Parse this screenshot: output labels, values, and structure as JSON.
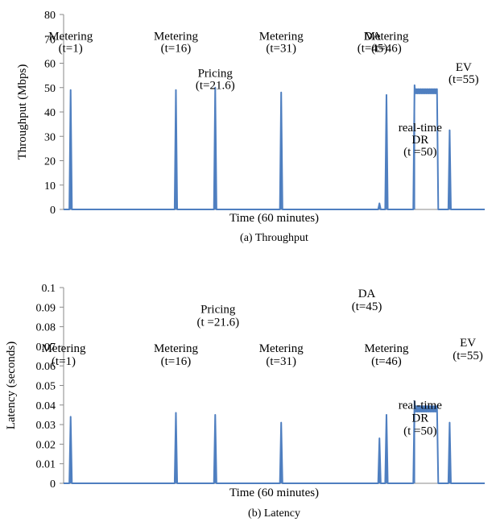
{
  "chart_data": [
    {
      "type": "line",
      "caption": "(a) Throughput",
      "xlabel": "Time (60 minutes)",
      "ylabel": "Throughput (Mbps)",
      "xlim": [
        0,
        60
      ],
      "ylim": [
        0,
        80
      ],
      "yticks": [
        "0",
        "10",
        "20",
        "30",
        "40",
        "50",
        "60",
        "70",
        "80"
      ],
      "grid": false,
      "bursts": [
        {
          "x": 1.0,
          "value": 49
        },
        {
          "x": 16.0,
          "value": 49
        },
        {
          "x": 21.6,
          "value": 50
        },
        {
          "x": 31.0,
          "value": 48
        },
        {
          "x": 45.0,
          "value": 2.5
        },
        {
          "x": 46.0,
          "value": 47
        },
        {
          "x": 50.0,
          "value": 51,
          "sustained_end": 53.2,
          "level": 48.5
        },
        {
          "x": 55.0,
          "value": 32.5
        }
      ],
      "annotations": [
        {
          "lines": [
            "Metering",
            "(t=1)"
          ],
          "x": 1.0,
          "y": 0.92
        },
        {
          "lines": [
            "Metering",
            "(t=16)"
          ],
          "x": 16.0,
          "y": 0.92
        },
        {
          "lines": [
            "Pricing",
            "(t=21.6)"
          ],
          "x": 21.6,
          "y": 0.73
        },
        {
          "lines": [
            "Metering",
            "(t=31)"
          ],
          "x": 31.0,
          "y": 0.92
        },
        {
          "lines": [
            "Metering",
            "(t=46)"
          ],
          "x": 46.0,
          "y": 0.92
        },
        {
          "lines": [
            "real-time",
            "DR",
            "(t =50)"
          ],
          "x": 50.8,
          "y": 0.45
        },
        {
          "lines": [
            "EV",
            "(t=55)"
          ],
          "x": 57.0,
          "y": 0.76
        },
        {
          "lines": [
            "DA",
            "(t=45)"
          ],
          "x": 44.0,
          "y": 0.92
        }
      ]
    },
    {
      "type": "line",
      "caption": "(b) Latency",
      "xlabel": "Time (60 minutes)",
      "ylabel": "Latency (seconds)",
      "xlim": [
        0,
        60
      ],
      "ylim": [
        0,
        0.1
      ],
      "yticks": [
        "0",
        "0.01",
        "0.02",
        "0.03",
        "0.04",
        "0.05",
        "0.06",
        "0.07",
        "0.08",
        "0.09",
        "0.1"
      ],
      "grid": false,
      "bursts": [
        {
          "x": 1.0,
          "value": 0.034
        },
        {
          "x": 16.0,
          "value": 0.036
        },
        {
          "x": 21.6,
          "value": 0.035
        },
        {
          "x": 31.0,
          "value": 0.031
        },
        {
          "x": 45.0,
          "value": 0.023
        },
        {
          "x": 46.0,
          "value": 0.035
        },
        {
          "x": 50.0,
          "value": 0.042,
          "sustained_end": 53.2,
          "level": 0.038
        },
        {
          "x": 55.0,
          "value": 0.031
        }
      ],
      "annotations": [
        {
          "lines": [
            "Metering",
            "(t=1)"
          ],
          "x": 0.0,
          "y": 0.72
        },
        {
          "lines": [
            "Metering",
            "(t=16)"
          ],
          "x": 16.0,
          "y": 0.72
        },
        {
          "lines": [
            "Pricing",
            "(t =21.6)"
          ],
          "x": 22.0,
          "y": 0.92
        },
        {
          "lines": [
            "Metering",
            "(t=31)"
          ],
          "x": 31.0,
          "y": 0.72
        },
        {
          "lines": [
            "Metering",
            "(t=46)"
          ],
          "x": 46.0,
          "y": 0.72
        },
        {
          "lines": [
            "real-time",
            "DR",
            "(t =50)"
          ],
          "x": 50.8,
          "y": 0.43
        },
        {
          "lines": [
            "EV",
            "(t=55)"
          ],
          "x": 57.6,
          "y": 0.75
        },
        {
          "lines": [
            "DA",
            "(t=45)"
          ],
          "x": 43.2,
          "y": 1.0
        }
      ]
    }
  ],
  "colors": {
    "series": "#4f7fc0",
    "axis": "#8a8a8a",
    "text": "#000000"
  }
}
